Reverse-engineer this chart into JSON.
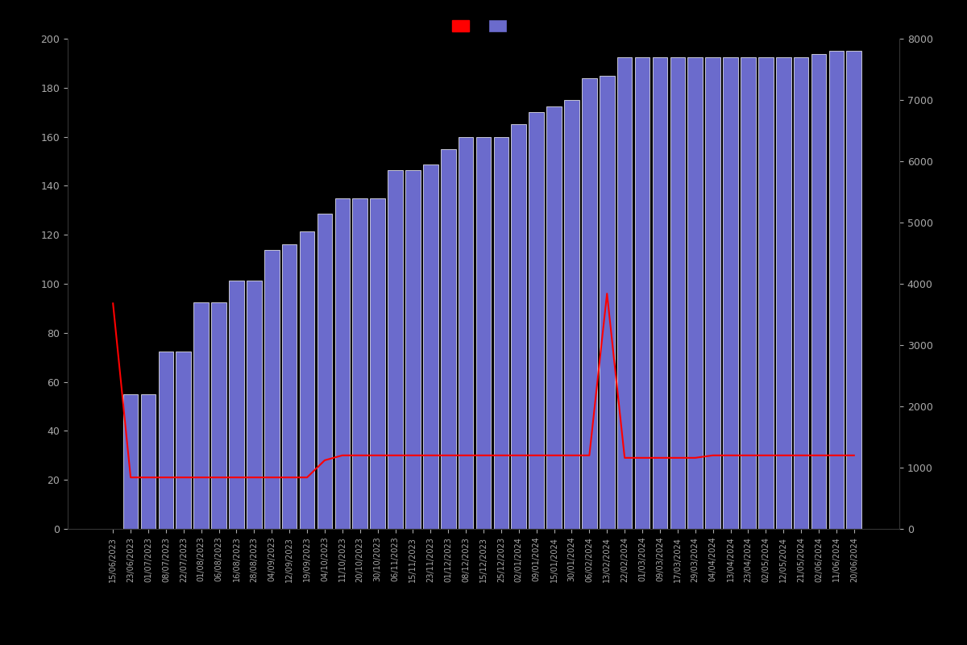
{
  "dates": [
    "15/06/2023",
    "23/06/2023",
    "01/07/2023",
    "08/07/2023",
    "22/07/2023",
    "01/08/2023",
    "06/08/2023",
    "16/08/2023",
    "28/08/2023",
    "04/09/2023",
    "12/09/2023",
    "19/09/2023",
    "04/10/2023",
    "11/10/2023",
    "20/10/2023",
    "30/10/2023",
    "06/11/2023",
    "15/11/2023",
    "23/11/2023",
    "01/12/2023",
    "08/12/2023",
    "15/12/2023",
    "25/12/2023",
    "02/01/2024",
    "09/01/2024",
    "15/01/2024",
    "30/01/2024",
    "06/02/2024",
    "13/02/2024",
    "22/02/2024",
    "01/03/2024",
    "09/03/2024",
    "17/03/2024",
    "29/03/2024",
    "04/04/2024",
    "13/04/2024",
    "23/04/2024",
    "02/05/2024",
    "12/05/2024",
    "21/05/2024",
    "02/06/2024",
    "11/06/2024",
    "20/06/2024"
  ],
  "bar_values": [
    0,
    2200,
    2200,
    2900,
    2900,
    3700,
    3700,
    4050,
    4050,
    4550,
    4650,
    4850,
    5150,
    5400,
    5400,
    5400,
    5850,
    5850,
    5950,
    6200,
    6400,
    6400,
    6400,
    6600,
    6800,
    6900,
    7000,
    7350,
    7400,
    7700,
    7700,
    7700,
    7700,
    7700,
    7700,
    7700,
    7700,
    7700,
    7700,
    7700,
    7750,
    7800,
    7800
  ],
  "line_values": [
    92,
    21,
    21,
    21,
    21,
    21,
    21,
    21,
    21,
    21,
    21,
    21,
    28,
    30,
    30,
    30,
    30,
    30,
    30,
    30,
    30,
    30,
    30,
    30,
    30,
    30,
    30,
    30,
    96,
    29,
    29,
    29,
    29,
    29,
    30,
    30,
    30,
    30,
    30,
    30,
    30,
    30,
    30
  ],
  "bar_color": "#6b6bcc",
  "bar_edge_color": "#ffffff",
  "line_color": "#ff0000",
  "bg_color": "#000000",
  "text_color": "#aaaaaa",
  "left_ylim": [
    0,
    200
  ],
  "right_ylim": [
    0,
    8000
  ],
  "left_yticks": [
    0,
    20,
    40,
    60,
    80,
    100,
    120,
    140,
    160,
    180,
    200
  ],
  "right_yticks": [
    0,
    1000,
    2000,
    3000,
    4000,
    5000,
    6000,
    7000,
    8000
  ]
}
